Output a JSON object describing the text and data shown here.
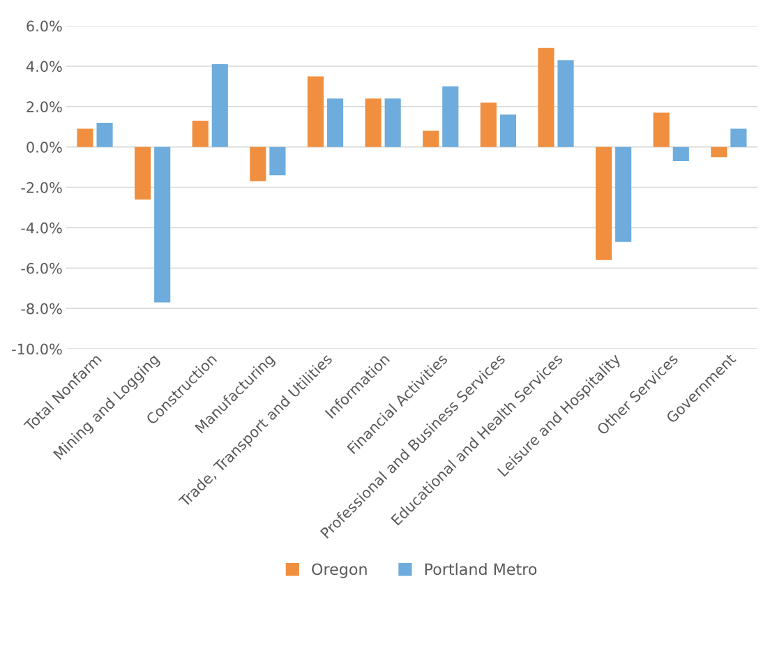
{
  "chart_data": {
    "type": "bar",
    "categories": [
      "Total Nonfarm",
      "Mining and Logging",
      "Construction",
      "Manufacturing",
      "Trade, Transport and Utilities",
      "Information",
      "Financial Activities",
      "Professional and Business Services",
      "Educational and Health Services",
      "Leisure and Hospitality",
      "Other Services",
      "Government"
    ],
    "series": [
      {
        "name": "Oregon",
        "color": "#f08f3f",
        "values": [
          0.9,
          -2.6,
          1.3,
          -1.7,
          3.5,
          2.4,
          0.8,
          2.2,
          4.9,
          -5.6,
          1.7,
          -0.5
        ]
      },
      {
        "name": "Portland Metro",
        "color": "#6dacdc",
        "values": [
          1.2,
          -7.7,
          4.1,
          -1.4,
          2.4,
          2.4,
          3.0,
          1.6,
          4.3,
          -4.7,
          -0.7,
          0.9
        ]
      }
    ],
    "ylim": [
      -10,
      6
    ],
    "yticks": [
      {
        "value": -10,
        "label": "-10.0%"
      },
      {
        "value": -8,
        "label": "-8.0%"
      },
      {
        "value": -6,
        "label": "-6.0%"
      },
      {
        "value": -4,
        "label": "-4.0%"
      },
      {
        "value": -2,
        "label": "-2.0%"
      },
      {
        "value": 0,
        "label": "0.0%"
      },
      {
        "value": 2,
        "label": "2.0%"
      },
      {
        "value": 4,
        "label": "4.0%"
      },
      {
        "value": 6,
        "label": "6.0%"
      }
    ],
    "grid": "y",
    "legend": "bottom"
  }
}
